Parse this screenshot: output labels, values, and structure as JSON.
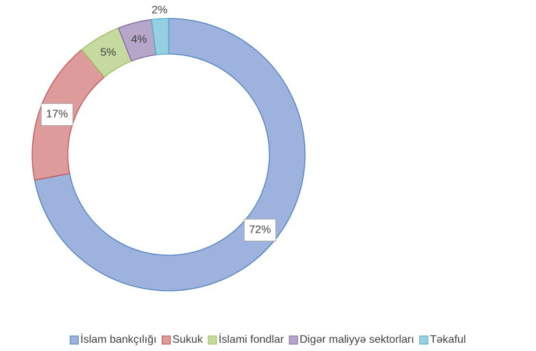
{
  "chart_data": {
    "type": "donut",
    "categories": [
      "İslam bankçılığı",
      "Sukuk",
      "İslami fondlar",
      "Digər maliyyə sektorları",
      "Təkaful"
    ],
    "values": [
      72,
      17,
      5,
      4,
      2
    ],
    "value_labels": [
      "72%",
      "17%",
      "5%",
      "4%",
      "2%"
    ],
    "colors": [
      "#9db3dd",
      "#dd9c9b",
      "#c6da9f",
      "#b6a6ca",
      "#96d0e0"
    ],
    "edge_colors": [
      "#4a7ebb",
      "#c0504d",
      "#9bbb59",
      "#8064a2",
      "#4bacc6"
    ],
    "legend": "bottom"
  }
}
